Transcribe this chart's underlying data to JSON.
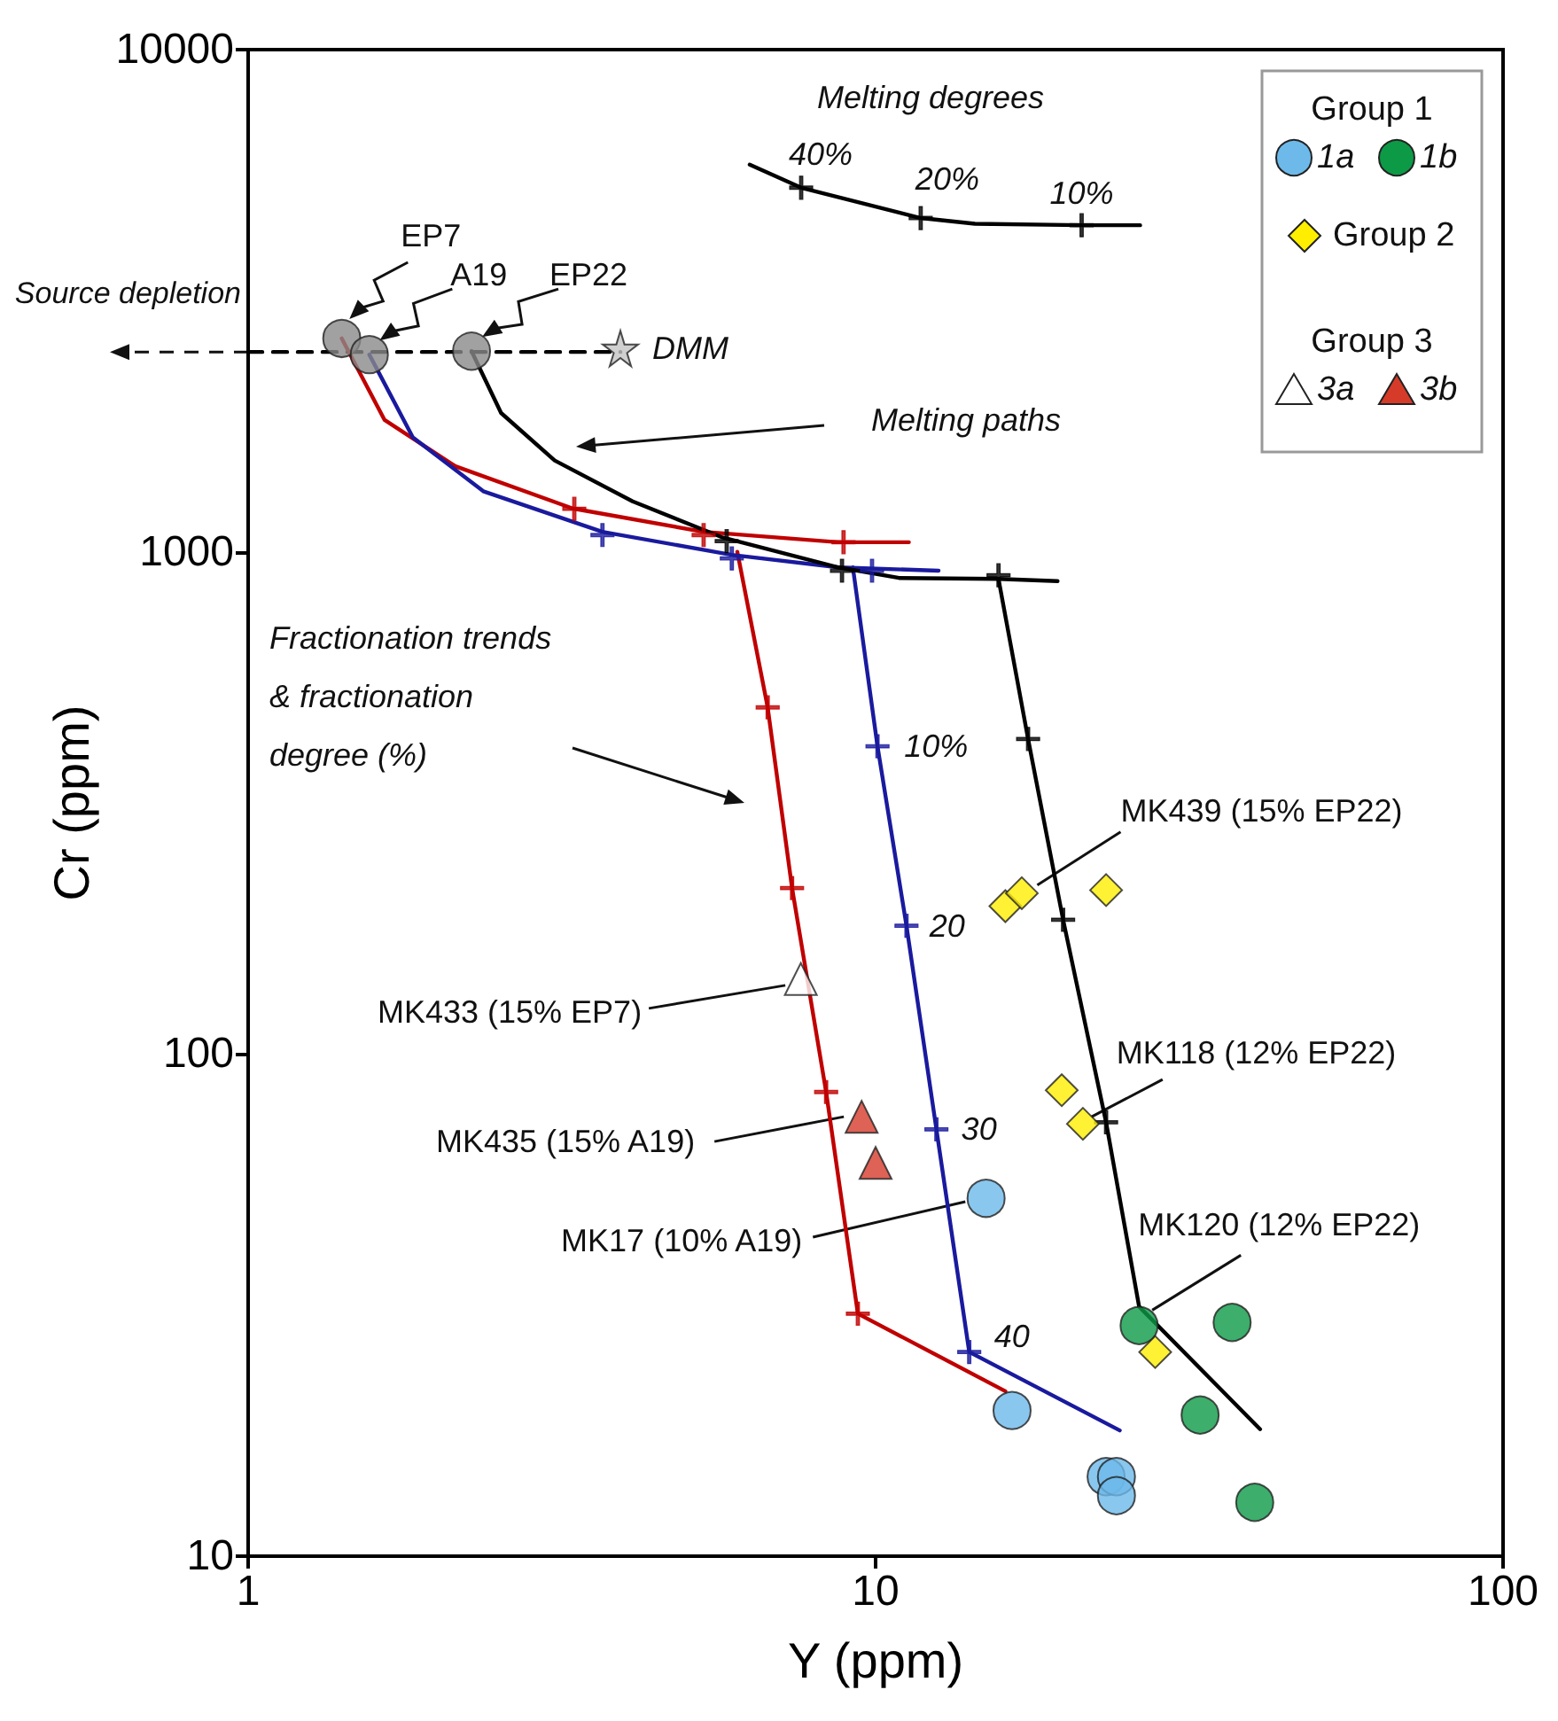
{
  "chart_data": {
    "type": "scatter",
    "xlabel": "Y (ppm)",
    "ylabel": "Cr (ppm)",
    "log": "xy",
    "xlim": [
      1,
      100
    ],
    "ylim": [
      10,
      10000
    ],
    "xticks": [
      1,
      10,
      100
    ],
    "yticks": [
      10,
      100,
      1000,
      10000
    ],
    "legend": "top right",
    "series": [
      {
        "name": "1a",
        "type": "scatter",
        "marker": "circle",
        "color": "#6db9ea",
        "x": [
          15.0,
          16.5,
          23.3,
          24.2,
          24.2
        ],
        "values": [
          51.6,
          19.5,
          14.4,
          14.4,
          13.2
        ]
      },
      {
        "name": "1b",
        "type": "scatter",
        "marker": "circle",
        "color": "#0c9a46",
        "x": [
          26.3,
          37.0,
          32.9,
          40.2
        ],
        "values": [
          28.8,
          29.2,
          19.1,
          12.8
        ]
      },
      {
        "name": "Group 2",
        "type": "scatter",
        "marker": "diamond",
        "color": "#ffee00",
        "x": [
          16.1,
          17.1,
          23.3,
          19.8,
          21.4,
          27.9
        ],
        "values": [
          197,
          209,
          212,
          84.7,
          72.6,
          25.5
        ]
      },
      {
        "name": "3a",
        "type": "scatter",
        "marker": "triangle",
        "color": "#ffffff",
        "x": [
          7.6
        ],
        "values": [
          141
        ]
      },
      {
        "name": "3b",
        "type": "scatter",
        "marker": "triangle",
        "color": "#d63b2a",
        "x": [
          9.5,
          10.0
        ],
        "values": [
          75,
          60.7
        ]
      },
      {
        "type": "line",
        "line_style": "dashed",
        "color": "#000000",
        "x": [
          1,
          3.92
        ],
        "values": [
          2500,
          2500
        ]
      },
      {
        "type": "line",
        "line_style": "solid",
        "color": "#c00000",
        "x": [
          1.41,
          1.65,
          2.14,
          3.29,
          5.32,
          8.73,
          11.3
        ],
        "values": [
          2660,
          1830,
          1480,
          1220,
          1096,
          1045,
          1045
        ]
      },
      {
        "type": "line",
        "line_style": "solid",
        "color": "#c00000",
        "x": [
          6.02,
          6.73,
          7.36,
          8.34,
          9.37,
          16.1
        ],
        "values": [
          1000,
          490,
          214,
          84,
          30.4,
          21.3
        ]
      },
      {
        "type": "line",
        "line_style": "solid",
        "color": "#1a1a9e",
        "x": [
          1.56,
          1.83,
          2.37,
          3.67,
          5.9,
          8.73,
          12.6
        ],
        "values": [
          2470,
          1690,
          1320,
          1096,
          986,
          931,
          917
        ]
      },
      {
        "type": "line",
        "line_style": "solid",
        "color": "#1a1a9e",
        "x": [
          9.2,
          10.07,
          11.2,
          12.5,
          14.1,
          24.5
        ],
        "values": [
          931,
          410,
          180,
          70.8,
          25.5,
          17.8
        ]
      },
      {
        "type": "line",
        "line_style": "solid",
        "color": "#000000",
        "x": [
          2.27,
          2.53,
          3.08,
          4.1,
          5.68,
          8.73,
          10.9,
          15.7,
          19.5
        ],
        "values": [
          2510,
          1890,
          1520,
          1260,
          1070,
          931,
          887,
          883,
          874
        ]
      },
      {
        "type": "line",
        "line_style": "solid",
        "color": "#000000",
        "x": [
          15.7,
          17.5,
          19.9,
          23.3,
          26.3,
          41.0
        ],
        "values": [
          883,
          424,
          185,
          73.1,
          31.4,
          17.9
        ]
      },
      {
        "type": "line",
        "line_style": "solid",
        "color": "#000000",
        "x": [
          6.3,
          7.61,
          11.8,
          14.4,
          21.3,
          26.4
        ],
        "values": [
          5900,
          5310,
          4620,
          4500,
          4470,
          4470
        ]
      },
      {
        "type": "scatter",
        "marker": "cross",
        "color": "#c00000",
        "x": [
          3.31,
          5.32,
          8.89,
          6.73,
          7.36,
          8.34,
          9.37
        ],
        "values": [
          1218,
          1080,
          1045,
          490,
          214,
          84,
          30.4
        ]
      },
      {
        "type": "scatter",
        "marker": "cross",
        "color": "#1a1a9e",
        "x": [
          3.67,
          5.9,
          9.87,
          10.07,
          11.2,
          12.5,
          14.1
        ],
        "values": [
          1080,
          970,
          917,
          410,
          180,
          70.8,
          25.5
        ]
      },
      {
        "type": "scatter",
        "marker": "cross",
        "color": "#000000",
        "x": [
          5.79,
          8.84,
          15.7,
          17.5,
          19.9,
          23.3,
          7.61,
          11.8,
          21.3
        ],
        "values": [
          1050,
          917,
          898,
          424,
          185,
          73.1,
          5310,
          4620,
          4470
        ]
      },
      {
        "type": "scatter",
        "marker": "circle",
        "color": "#8a8a8a",
        "x": [
          1.41,
          1.56,
          2.27
        ],
        "values": [
          2660,
          2470,
          2510
        ]
      },
      {
        "type": "scatter",
        "marker": "star",
        "color": "#c4c4c4",
        "x": [
          3.92
        ],
        "values": [
          2540
        ]
      }
    ],
    "annotations": [
      "Melting degrees",
      {
        "text": "40%",
        "x": 7.61,
        "y": 5310
      },
      {
        "text": "20%",
        "x": 11.8,
        "y": 4620
      },
      {
        "text": "10%",
        "x": 21.3,
        "y": 4470
      },
      {
        "text": "EP7",
        "x": 1.45,
        "y": 2907
      },
      {
        "text": "A19",
        "x": 1.62,
        "y": 2636
      },
      {
        "text": "EP22",
        "x": 2.36,
        "y": 2679
      },
      {
        "text": "DMM",
        "x": 3.92,
        "y": 2540
      },
      {
        "text": "Source depletion",
        "x": 1,
        "y": 2500
      },
      "Melting paths",
      "Fractionation trends\n& fractionation\ndegree (%)",
      {
        "text": "MK433 (15% EP7)",
        "x": 7.18,
        "y": 137
      },
      {
        "text": "MK435 (15% A19)",
        "x": 8.9,
        "y": 75
      },
      {
        "text": "MK17 (10% A19)",
        "x": 13.9,
        "y": 50.8
      },
      {
        "text": "MK439 (15% EP22)",
        "x": 18.1,
        "y": 217
      },
      {
        "text": "MK118 (12% EP22)",
        "x": 22.1,
        "y": 75
      },
      {
        "text": "MK120 (12% EP22)",
        "x": 27.6,
        "y": 30.9
      },
      {
        "text": "10%",
        "x": 10.07,
        "y": 410
      },
      {
        "text": "20",
        "x": 11.2,
        "y": 180
      },
      {
        "text": "30",
        "x": 12.5,
        "y": 70.8
      },
      {
        "text": "40",
        "x": 14.1,
        "y": 25.5
      },
      "Group 1",
      "Group 3"
    ]
  }
}
